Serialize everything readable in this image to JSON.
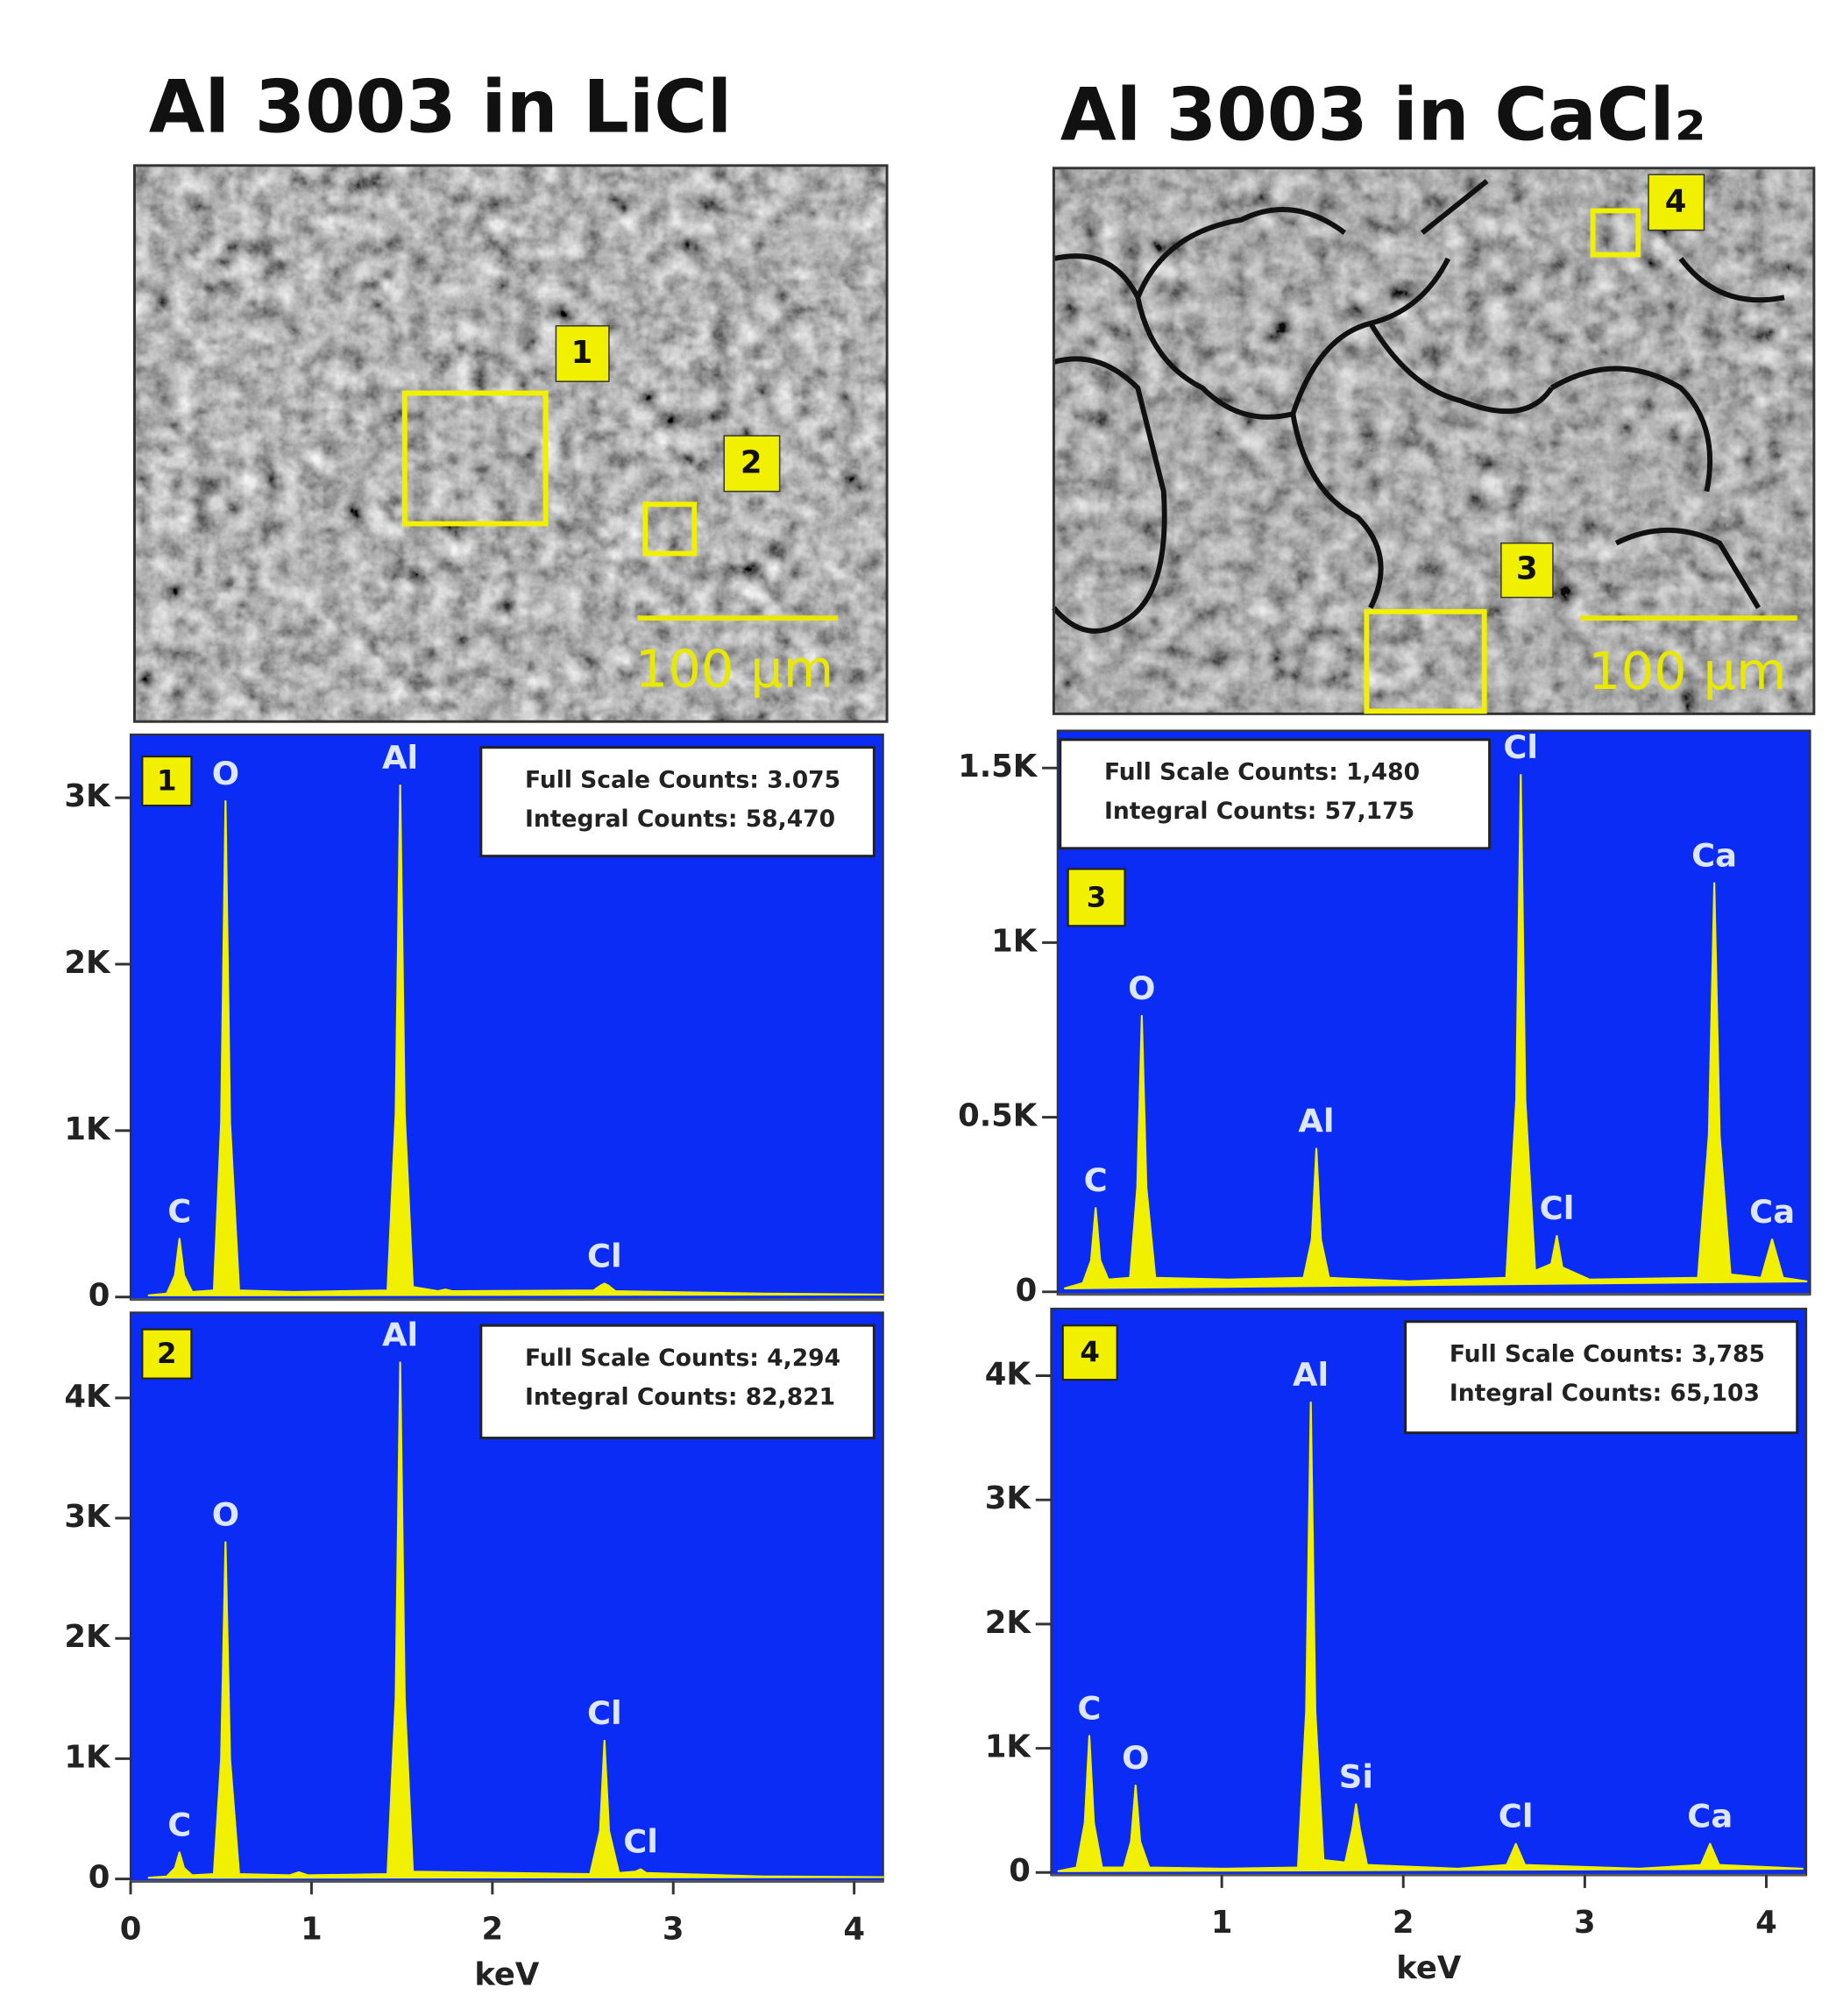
{
  "figure": {
    "titles": [
      "Al 3003 in LiCl",
      "Al 3003 in CaCl₂"
    ]
  },
  "images": [
    {
      "labels": [
        "1",
        "2"
      ],
      "scale_bar": "100 µm"
    },
    {
      "labels": [
        "4",
        "3"
      ],
      "scale_bar": "100 µm"
    }
  ],
  "chart_data": [
    {
      "type": "area",
      "tag": "1",
      "info": [
        "Full Scale Counts: 3.075",
        "Integral Counts: 58,470"
      ],
      "color": "#f0f000",
      "xlim": [
        0,
        4.16
      ],
      "ylim": [
        0,
        3380
      ],
      "yticks": [
        0,
        {
          "value": 1000,
          "label": "1K"
        },
        {
          "value": 2000,
          "label": "2K"
        },
        {
          "value": 3000,
          "label": "3K"
        }
      ],
      "x": [
        0.1,
        0.2,
        0.245,
        0.27,
        0.295,
        0.34,
        0.46,
        0.5,
        0.525,
        0.55,
        0.6,
        0.9,
        1.42,
        1.465,
        1.49,
        1.515,
        1.56,
        1.7,
        1.74,
        1.78,
        2.56,
        2.6,
        2.62,
        2.64,
        2.68,
        3.5,
        4.16
      ],
      "values": [
        10,
        20,
        130,
        350,
        130,
        30,
        40,
        1050,
        2980,
        1050,
        40,
        30,
        40,
        1100,
        3075,
        1100,
        60,
        35,
        45,
        35,
        40,
        70,
        80,
        70,
        35,
        20,
        15
      ],
      "annotations": [
        {
          "text": "C",
          "x": 0.27
        },
        {
          "text": "O",
          "x": 0.525
        },
        {
          "text": "Al",
          "x": 1.49
        },
        {
          "text": "Cl",
          "x": 2.62
        }
      ]
    },
    {
      "type": "area",
      "tag": "2",
      "info": [
        "Full Scale Counts: 4,294",
        "Integral Counts: 82,821"
      ],
      "color": "#f0f000",
      "xlim": [
        0,
        4.16
      ],
      "ylim": [
        0,
        4710
      ],
      "xlabel": "keV",
      "xticks": [
        0,
        1,
        2,
        3,
        4
      ],
      "yticks": [
        0,
        {
          "value": 1000,
          "label": "1K"
        },
        {
          "value": 2000,
          "label": "2K"
        },
        {
          "value": 3000,
          "label": "3K"
        },
        {
          "value": 4000,
          "label": "4K"
        }
      ],
      "x": [
        0.1,
        0.2,
        0.245,
        0.27,
        0.295,
        0.34,
        0.46,
        0.5,
        0.525,
        0.55,
        0.6,
        0.88,
        0.93,
        0.98,
        1.42,
        1.465,
        1.49,
        1.515,
        1.56,
        2.54,
        2.595,
        2.62,
        2.645,
        2.7,
        2.79,
        2.82,
        2.85,
        3.5,
        4.16
      ],
      "values": [
        10,
        20,
        90,
        220,
        90,
        30,
        40,
        1000,
        2800,
        1000,
        40,
        30,
        55,
        30,
        40,
        1500,
        4294,
        1500,
        60,
        40,
        400,
        1150,
        400,
        50,
        60,
        80,
        50,
        20,
        15
      ],
      "annotations": [
        {
          "text": "C",
          "x": 0.27
        },
        {
          "text": "O",
          "x": 0.525
        },
        {
          "text": "Al",
          "x": 1.49
        },
        {
          "text": "Cl",
          "x": 2.62
        },
        {
          "text": "Cl",
          "x": 2.82
        }
      ]
    },
    {
      "type": "area",
      "tag": "3",
      "info": [
        "Full Scale Counts: 1,480",
        "Integral Counts: 57,175"
      ],
      "color": "#f0f000",
      "xlim": [
        0.06,
        4.22
      ],
      "ylim": [
        0,
        1607
      ],
      "yticks": [
        0,
        {
          "value": 500,
          "label": "0.5K"
        },
        {
          "value": 1000,
          "label": "1K"
        },
        {
          "value": 1500,
          "label": "1.5K"
        }
      ],
      "x": [
        0.1,
        0.2,
        0.245,
        0.27,
        0.295,
        0.34,
        0.46,
        0.5,
        0.525,
        0.55,
        0.6,
        1.0,
        1.42,
        1.465,
        1.49,
        1.515,
        1.56,
        2.0,
        2.54,
        2.595,
        2.62,
        2.645,
        2.7,
        2.79,
        2.82,
        2.85,
        3.0,
        3.6,
        3.66,
        3.69,
        3.72,
        3.78,
        3.95,
        4.01,
        4.07,
        4.2
      ],
      "values": [
        10,
        25,
        90,
        240,
        90,
        35,
        40,
        300,
        790,
        300,
        40,
        35,
        40,
        150,
        410,
        150,
        40,
        30,
        40,
        550,
        1480,
        550,
        60,
        80,
        160,
        70,
        35,
        40,
        450,
        1170,
        450,
        50,
        40,
        150,
        40,
        30
      ],
      "annotations": [
        {
          "text": "C",
          "x": 0.27
        },
        {
          "text": "O",
          "x": 0.525
        },
        {
          "text": "Al",
          "x": 1.49
        },
        {
          "text": "Cl",
          "x": 2.62
        },
        {
          "text": "Cl",
          "x": 2.82
        },
        {
          "text": "Ca",
          "x": 3.69
        },
        {
          "text": "Ca",
          "x": 4.01
        }
      ]
    },
    {
      "type": "area",
      "tag": "4",
      "info": [
        "Full Scale Counts: 3,785",
        "Integral Counts: 65,103"
      ],
      "color": "#f0f000",
      "xlim": [
        0.06,
        4.22
      ],
      "ylim": [
        0,
        4540
      ],
      "xlabel": "keV",
      "xticks": [
        1,
        2,
        3,
        4
      ],
      "yticks": [
        0,
        {
          "value": 1000,
          "label": "1K"
        },
        {
          "value": 2000,
          "label": "2K"
        },
        {
          "value": 3000,
          "label": "3K"
        },
        {
          "value": 4000,
          "label": "4K"
        }
      ],
      "x": [
        0.1,
        0.2,
        0.245,
        0.27,
        0.295,
        0.34,
        0.46,
        0.5,
        0.525,
        0.55,
        0.6,
        1.0,
        1.42,
        1.465,
        1.49,
        1.515,
        1.56,
        1.68,
        1.72,
        1.74,
        1.76,
        1.8,
        2.3,
        2.57,
        2.62,
        2.67,
        3.3,
        3.64,
        3.69,
        3.74,
        4.2
      ],
      "values": [
        10,
        40,
        400,
        1100,
        400,
        40,
        40,
        250,
        700,
        250,
        40,
        30,
        40,
        1300,
        3785,
        1300,
        100,
        80,
        350,
        550,
        350,
        60,
        30,
        60,
        230,
        60,
        30,
        60,
        230,
        60,
        30
      ],
      "annotations": [
        {
          "text": "C",
          "x": 0.27
        },
        {
          "text": "O",
          "x": 0.525
        },
        {
          "text": "Al",
          "x": 1.49
        },
        {
          "text": "Si",
          "x": 1.74
        },
        {
          "text": "Cl",
          "x": 2.62
        },
        {
          "text": "Ca",
          "x": 3.69
        }
      ]
    }
  ]
}
